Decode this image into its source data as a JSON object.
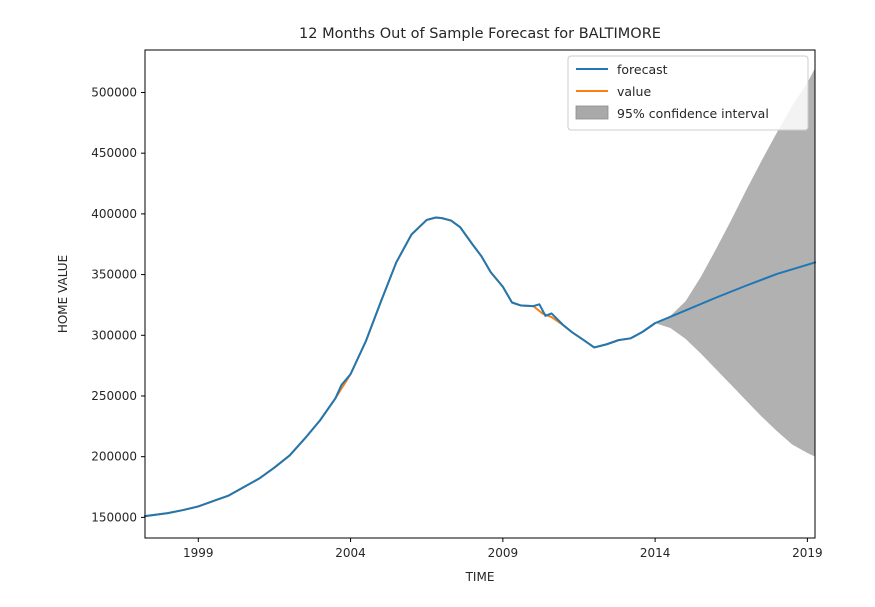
{
  "chart_data": {
    "type": "line",
    "title": "12 Months Out of Sample Forecast for BALTIMORE",
    "xlabel": "TIME",
    "ylabel": "HOME VALUE",
    "xlim": [
      1997.25,
      2019.25
    ],
    "ylim": [
      133000,
      535000
    ],
    "x_ticks": [
      {
        "value": 1999,
        "label": "1999"
      },
      {
        "value": 2004,
        "label": "2004"
      },
      {
        "value": 2009,
        "label": "2009"
      },
      {
        "value": 2014,
        "label": "2014"
      },
      {
        "value": 2019,
        "label": "2019"
      }
    ],
    "y_ticks": [
      {
        "value": 150000,
        "label": "150000"
      },
      {
        "value": 200000,
        "label": "200000"
      },
      {
        "value": 250000,
        "label": "250000"
      },
      {
        "value": 300000,
        "label": "300000"
      },
      {
        "value": 350000,
        "label": "350000"
      },
      {
        "value": 400000,
        "label": "400000"
      },
      {
        "value": 450000,
        "label": "450000"
      },
      {
        "value": 500000,
        "label": "500000"
      }
    ],
    "grid": false,
    "legend_position": "top-right",
    "legend": [
      {
        "label": "forecast",
        "kind": "line",
        "color": "#1f77b4"
      },
      {
        "label": "value",
        "kind": "line",
        "color": "#ff7f0e"
      },
      {
        "label": "95% confidence interval",
        "kind": "patch",
        "color": "#a9a9a9"
      }
    ],
    "series": [
      {
        "name": "value",
        "color": "#ff7f0e",
        "x": [
          1997.25,
          1998.0,
          1998.5,
          1999.0,
          1999.5,
          2000.0,
          2000.5,
          2001.0,
          2001.5,
          2002.0,
          2002.5,
          2003.0,
          2003.5,
          2004.0,
          2004.5,
          2005.0,
          2005.5,
          2006.0,
          2006.5,
          2006.8,
          2007.0,
          2007.3,
          2007.6,
          2008.0,
          2008.3,
          2008.6,
          2009.0,
          2009.3,
          2009.6,
          2010.0,
          2010.3,
          2010.6,
          2011.0,
          2011.3,
          2011.6,
          2012.0,
          2012.4,
          2012.8,
          2013.2,
          2013.6,
          2014.0
        ],
        "y": [
          151000,
          153500,
          156000,
          159000,
          163500,
          168000,
          175000,
          182000,
          191000,
          201000,
          215000,
          230000,
          248000,
          268000,
          295000,
          328000,
          360000,
          383000,
          395000,
          397000,
          396500,
          394500,
          389000,
          375000,
          365000,
          352000,
          340000,
          327000,
          324500,
          324000,
          318000,
          315000,
          308000,
          302000,
          297000,
          290000,
          292500,
          296000,
          297500,
          303000,
          310000
        ]
      },
      {
        "name": "forecast",
        "color": "#1f77b4",
        "x": [
          1997.25,
          1998.0,
          1998.5,
          1999.0,
          1999.5,
          2000.0,
          2000.5,
          2001.0,
          2001.5,
          2002.0,
          2002.5,
          2003.0,
          2003.5,
          2003.7,
          2004.0,
          2004.5,
          2005.0,
          2005.5,
          2006.0,
          2006.5,
          2006.8,
          2007.0,
          2007.3,
          2007.6,
          2008.0,
          2008.3,
          2008.6,
          2009.0,
          2009.3,
          2009.6,
          2010.0,
          2010.2,
          2010.4,
          2010.6,
          2011.0,
          2011.3,
          2011.6,
          2012.0,
          2012.4,
          2012.8,
          2013.2,
          2013.6,
          2014.0,
          2015.0,
          2016.0,
          2017.0,
          2018.0,
          2019.25
        ],
        "y": [
          151000,
          153500,
          156000,
          159000,
          163500,
          168000,
          175000,
          182000,
          191000,
          201000,
          215000,
          230000,
          248000,
          259000,
          268000,
          295000,
          328000,
          360000,
          383000,
          395000,
          397000,
          396500,
          394500,
          389000,
          375000,
          365000,
          352000,
          340000,
          327000,
          324500,
          324000,
          325500,
          316000,
          318000,
          308000,
          302000,
          297000,
          290000,
          292500,
          296000,
          297500,
          303000,
          310000,
          320500,
          331000,
          341000,
          350500,
          360000
        ]
      }
    ],
    "confidence_interval": {
      "name": "95% confidence interval",
      "color": "#a9a9a9",
      "x": [
        2014.0,
        2014.5,
        2015.0,
        2015.5,
        2016.0,
        2016.5,
        2017.0,
        2017.5,
        2018.0,
        2018.5,
        2019.0,
        2019.25
      ],
      "lower": [
        310000,
        306000,
        297000,
        285000,
        272000,
        259000,
        246000,
        233000,
        221000,
        210000,
        203000,
        200000
      ],
      "upper": [
        310000,
        316000,
        328000,
        348000,
        371000,
        395000,
        420000,
        444000,
        467000,
        489000,
        508000,
        520000
      ]
    }
  }
}
